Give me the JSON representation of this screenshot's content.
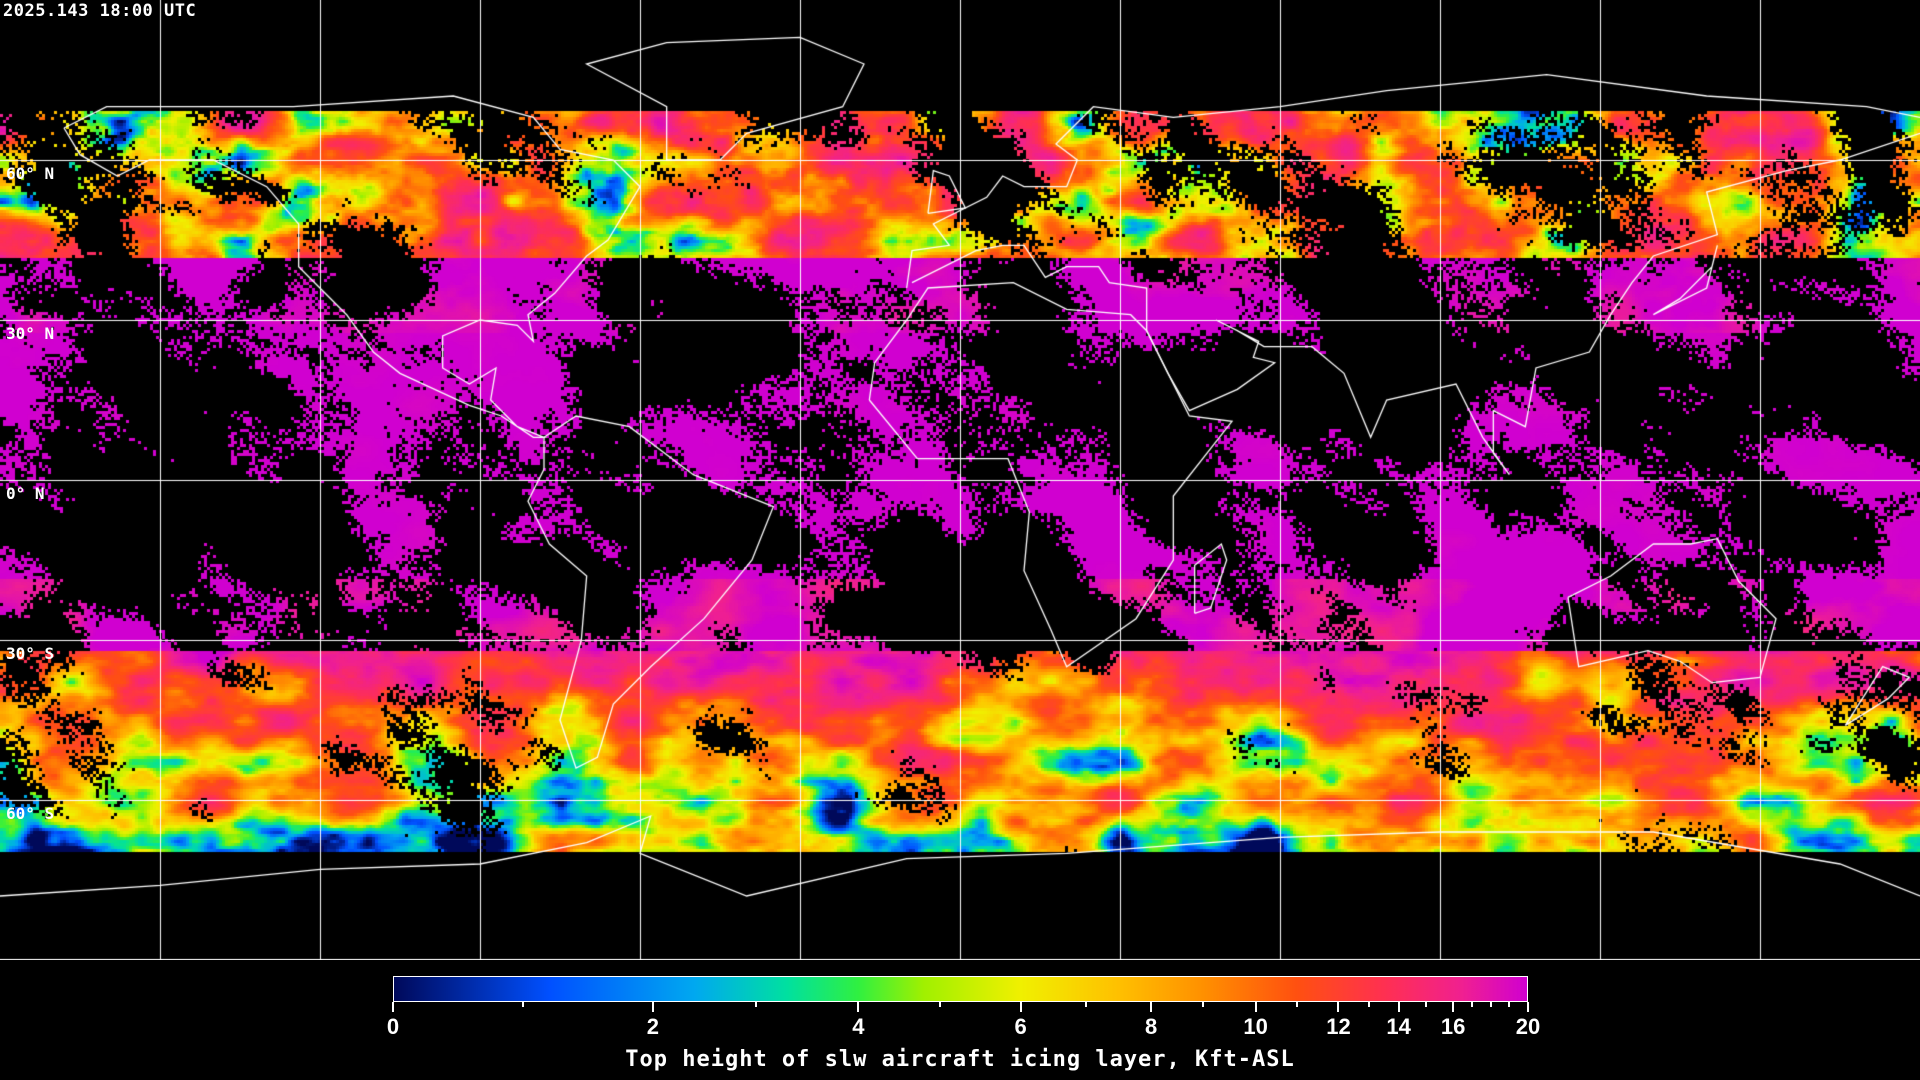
{
  "header": {
    "timestamp": "2025.143 18:00 UTC"
  },
  "map": {
    "projection": "equirectangular",
    "lon_range": [
      -180,
      180
    ],
    "lat_range": [
      -90,
      90
    ],
    "gridline_spacing_deg": 30,
    "grid_color": "#ffffff",
    "coastline_color": "#ffffff",
    "background": "#000000",
    "lat_labels": [
      "60° N",
      "30° N",
      "0° N",
      "30° S",
      "60° S"
    ]
  },
  "colorbar": {
    "title": "Top height of slw aircraft icing layer, Kft-ASL",
    "range": [
      0,
      20
    ],
    "tick_labels": [
      "0",
      "2",
      "4",
      "6",
      "8",
      "10",
      "12",
      "14",
      "16",
      "20"
    ],
    "tick_values": [
      0,
      2,
      4,
      6,
      8,
      10,
      12,
      14,
      16,
      20
    ],
    "minor_tick_values": [
      1,
      3,
      5,
      7,
      9,
      11,
      13,
      15,
      17,
      18,
      19
    ],
    "colormap": [
      {
        "value": 0,
        "color": "#00095a"
      },
      {
        "value": 1.2,
        "color": "#0050ff"
      },
      {
        "value": 2.4,
        "color": "#00a8f0"
      },
      {
        "value": 3.3,
        "color": "#00e0a0"
      },
      {
        "value": 4,
        "color": "#30f040"
      },
      {
        "value": 4.8,
        "color": "#a0f000"
      },
      {
        "value": 6,
        "color": "#f0f000"
      },
      {
        "value": 7.5,
        "color": "#ffc000"
      },
      {
        "value": 9,
        "color": "#ff9000"
      },
      {
        "value": 11,
        "color": "#ff5010"
      },
      {
        "value": 13.5,
        "color": "#ff3050"
      },
      {
        "value": 16.5,
        "color": "#f02090"
      },
      {
        "value": 20,
        "color": "#d000d0"
      }
    ]
  }
}
